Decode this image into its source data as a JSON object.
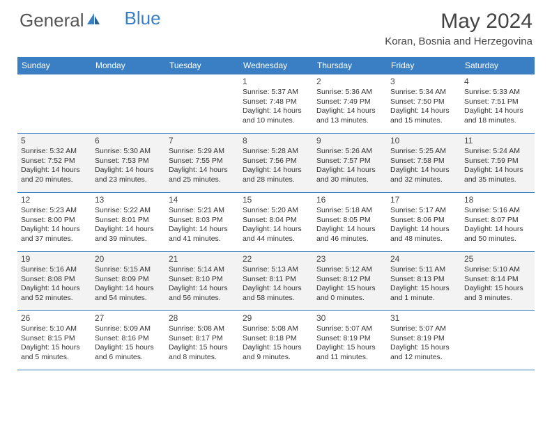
{
  "brand": {
    "part1": "General",
    "part2": "Blue"
  },
  "title": "May 2024",
  "location": "Koran, Bosnia and Herzegovina",
  "colors": {
    "header_bg": "#3a7fc4",
    "alt_row_bg": "#f3f3f3",
    "border": "#3a7fc4",
    "text": "#333333"
  },
  "day_labels": [
    "Sunday",
    "Monday",
    "Tuesday",
    "Wednesday",
    "Thursday",
    "Friday",
    "Saturday"
  ],
  "weeks": [
    {
      "alt": false,
      "cells": [
        {
          "empty": true
        },
        {
          "empty": true
        },
        {
          "empty": true
        },
        {
          "num": "1",
          "sunrise": "Sunrise: 5:37 AM",
          "sunset": "Sunset: 7:48 PM",
          "day1": "Daylight: 14 hours",
          "day2": "and 10 minutes."
        },
        {
          "num": "2",
          "sunrise": "Sunrise: 5:36 AM",
          "sunset": "Sunset: 7:49 PM",
          "day1": "Daylight: 14 hours",
          "day2": "and 13 minutes."
        },
        {
          "num": "3",
          "sunrise": "Sunrise: 5:34 AM",
          "sunset": "Sunset: 7:50 PM",
          "day1": "Daylight: 14 hours",
          "day2": "and 15 minutes."
        },
        {
          "num": "4",
          "sunrise": "Sunrise: 5:33 AM",
          "sunset": "Sunset: 7:51 PM",
          "day1": "Daylight: 14 hours",
          "day2": "and 18 minutes."
        }
      ]
    },
    {
      "alt": true,
      "cells": [
        {
          "num": "5",
          "sunrise": "Sunrise: 5:32 AM",
          "sunset": "Sunset: 7:52 PM",
          "day1": "Daylight: 14 hours",
          "day2": "and 20 minutes."
        },
        {
          "num": "6",
          "sunrise": "Sunrise: 5:30 AM",
          "sunset": "Sunset: 7:53 PM",
          "day1": "Daylight: 14 hours",
          "day2": "and 23 minutes."
        },
        {
          "num": "7",
          "sunrise": "Sunrise: 5:29 AM",
          "sunset": "Sunset: 7:55 PM",
          "day1": "Daylight: 14 hours",
          "day2": "and 25 minutes."
        },
        {
          "num": "8",
          "sunrise": "Sunrise: 5:28 AM",
          "sunset": "Sunset: 7:56 PM",
          "day1": "Daylight: 14 hours",
          "day2": "and 28 minutes."
        },
        {
          "num": "9",
          "sunrise": "Sunrise: 5:26 AM",
          "sunset": "Sunset: 7:57 PM",
          "day1": "Daylight: 14 hours",
          "day2": "and 30 minutes."
        },
        {
          "num": "10",
          "sunrise": "Sunrise: 5:25 AM",
          "sunset": "Sunset: 7:58 PM",
          "day1": "Daylight: 14 hours",
          "day2": "and 32 minutes."
        },
        {
          "num": "11",
          "sunrise": "Sunrise: 5:24 AM",
          "sunset": "Sunset: 7:59 PM",
          "day1": "Daylight: 14 hours",
          "day2": "and 35 minutes."
        }
      ]
    },
    {
      "alt": false,
      "cells": [
        {
          "num": "12",
          "sunrise": "Sunrise: 5:23 AM",
          "sunset": "Sunset: 8:00 PM",
          "day1": "Daylight: 14 hours",
          "day2": "and 37 minutes."
        },
        {
          "num": "13",
          "sunrise": "Sunrise: 5:22 AM",
          "sunset": "Sunset: 8:01 PM",
          "day1": "Daylight: 14 hours",
          "day2": "and 39 minutes."
        },
        {
          "num": "14",
          "sunrise": "Sunrise: 5:21 AM",
          "sunset": "Sunset: 8:03 PM",
          "day1": "Daylight: 14 hours",
          "day2": "and 41 minutes."
        },
        {
          "num": "15",
          "sunrise": "Sunrise: 5:20 AM",
          "sunset": "Sunset: 8:04 PM",
          "day1": "Daylight: 14 hours",
          "day2": "and 44 minutes."
        },
        {
          "num": "16",
          "sunrise": "Sunrise: 5:18 AM",
          "sunset": "Sunset: 8:05 PM",
          "day1": "Daylight: 14 hours",
          "day2": "and 46 minutes."
        },
        {
          "num": "17",
          "sunrise": "Sunrise: 5:17 AM",
          "sunset": "Sunset: 8:06 PM",
          "day1": "Daylight: 14 hours",
          "day2": "and 48 minutes."
        },
        {
          "num": "18",
          "sunrise": "Sunrise: 5:16 AM",
          "sunset": "Sunset: 8:07 PM",
          "day1": "Daylight: 14 hours",
          "day2": "and 50 minutes."
        }
      ]
    },
    {
      "alt": true,
      "cells": [
        {
          "num": "19",
          "sunrise": "Sunrise: 5:16 AM",
          "sunset": "Sunset: 8:08 PM",
          "day1": "Daylight: 14 hours",
          "day2": "and 52 minutes."
        },
        {
          "num": "20",
          "sunrise": "Sunrise: 5:15 AM",
          "sunset": "Sunset: 8:09 PM",
          "day1": "Daylight: 14 hours",
          "day2": "and 54 minutes."
        },
        {
          "num": "21",
          "sunrise": "Sunrise: 5:14 AM",
          "sunset": "Sunset: 8:10 PM",
          "day1": "Daylight: 14 hours",
          "day2": "and 56 minutes."
        },
        {
          "num": "22",
          "sunrise": "Sunrise: 5:13 AM",
          "sunset": "Sunset: 8:11 PM",
          "day1": "Daylight: 14 hours",
          "day2": "and 58 minutes."
        },
        {
          "num": "23",
          "sunrise": "Sunrise: 5:12 AM",
          "sunset": "Sunset: 8:12 PM",
          "day1": "Daylight: 15 hours",
          "day2": "and 0 minutes."
        },
        {
          "num": "24",
          "sunrise": "Sunrise: 5:11 AM",
          "sunset": "Sunset: 8:13 PM",
          "day1": "Daylight: 15 hours",
          "day2": "and 1 minute."
        },
        {
          "num": "25",
          "sunrise": "Sunrise: 5:10 AM",
          "sunset": "Sunset: 8:14 PM",
          "day1": "Daylight: 15 hours",
          "day2": "and 3 minutes."
        }
      ]
    },
    {
      "alt": false,
      "cells": [
        {
          "num": "26",
          "sunrise": "Sunrise: 5:10 AM",
          "sunset": "Sunset: 8:15 PM",
          "day1": "Daylight: 15 hours",
          "day2": "and 5 minutes."
        },
        {
          "num": "27",
          "sunrise": "Sunrise: 5:09 AM",
          "sunset": "Sunset: 8:16 PM",
          "day1": "Daylight: 15 hours",
          "day2": "and 6 minutes."
        },
        {
          "num": "28",
          "sunrise": "Sunrise: 5:08 AM",
          "sunset": "Sunset: 8:17 PM",
          "day1": "Daylight: 15 hours",
          "day2": "and 8 minutes."
        },
        {
          "num": "29",
          "sunrise": "Sunrise: 5:08 AM",
          "sunset": "Sunset: 8:18 PM",
          "day1": "Daylight: 15 hours",
          "day2": "and 9 minutes."
        },
        {
          "num": "30",
          "sunrise": "Sunrise: 5:07 AM",
          "sunset": "Sunset: 8:19 PM",
          "day1": "Daylight: 15 hours",
          "day2": "and 11 minutes."
        },
        {
          "num": "31",
          "sunrise": "Sunrise: 5:07 AM",
          "sunset": "Sunset: 8:19 PM",
          "day1": "Daylight: 15 hours",
          "day2": "and 12 minutes."
        },
        {
          "empty": true
        }
      ]
    }
  ]
}
